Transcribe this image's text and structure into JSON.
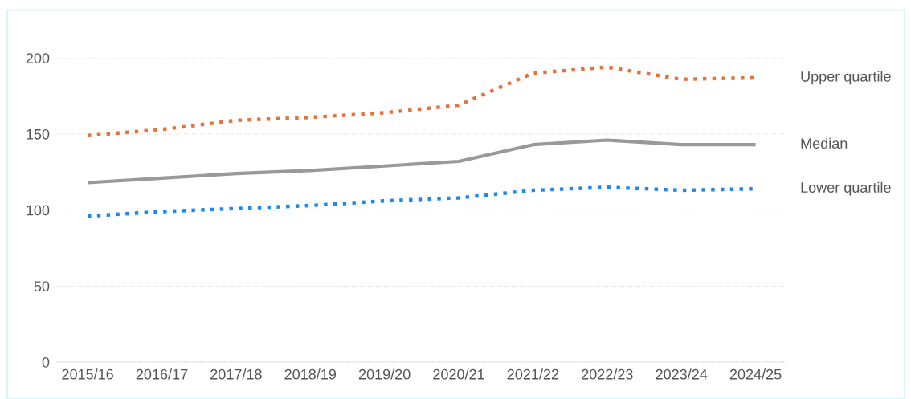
{
  "chart_data": {
    "type": "line",
    "categories": [
      "2015/16",
      "2016/17",
      "2017/18",
      "2018/19",
      "2019/20",
      "2020/21",
      "2021/22",
      "2022/23",
      "2023/24",
      "2024/25"
    ],
    "series": [
      {
        "name": "Upper quartile",
        "color": "#e8703a",
        "line_style": "dotted",
        "values": [
          149,
          153,
          159,
          161,
          164,
          169,
          190,
          194,
          186,
          187
        ]
      },
      {
        "name": "Median",
        "color": "#999999",
        "line_style": "solid",
        "values": [
          118,
          121,
          124,
          126,
          129,
          132,
          143,
          146,
          143,
          143
        ]
      },
      {
        "name": "Lower quartile",
        "color": "#1e88f0",
        "line_style": "dotted",
        "values": [
          96,
          99,
          101,
          103,
          106,
          108,
          113,
          115,
          113,
          114
        ]
      }
    ],
    "ylim": [
      0,
      200
    ],
    "yticks": [
      0,
      50,
      100,
      150,
      200
    ],
    "grid": "y",
    "legend": false,
    "marker": "none"
  }
}
